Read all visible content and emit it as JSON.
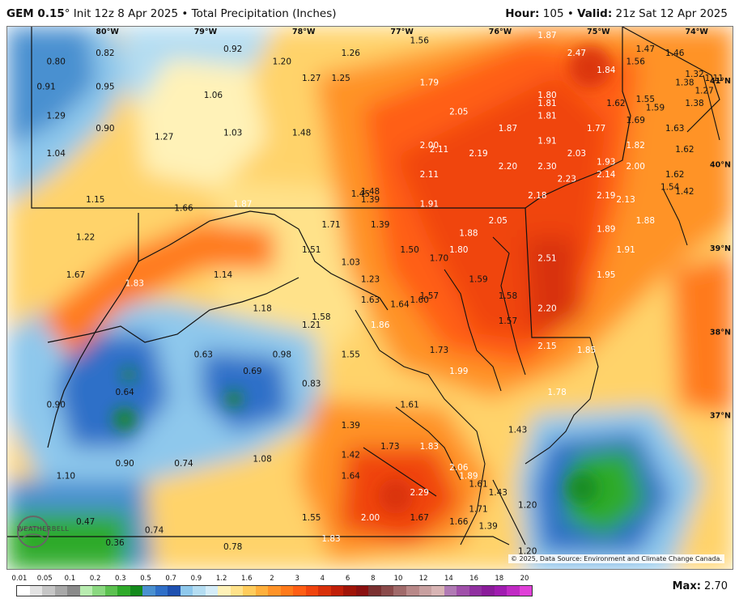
{
  "header": {
    "model": "GEM 0.15",
    "init": "Init 12z 8 Apr 2025",
    "product": "Total Precipitation (Inches)",
    "hour_label": "Hour:",
    "hour": "105",
    "valid_label": "Valid:",
    "valid": "21z Sat 12 Apr 2025"
  },
  "map": {
    "longitude_labels": [
      "80°W",
      "79°W",
      "78°W",
      "77°W",
      "76°W",
      "75°W",
      "74°W"
    ],
    "latitude_labels": [
      "41°N",
      "40°N",
      "39°N",
      "38°N",
      "37°N"
    ],
    "values": [
      {
        "v": "0.80",
        "lon": -80.6,
        "lat": 41.2
      },
      {
        "v": "0.82",
        "lon": -80.1,
        "lat": 41.3
      },
      {
        "v": "0.92",
        "lon": -78.8,
        "lat": 41.35
      },
      {
        "v": "1.20",
        "lon": -78.3,
        "lat": 41.2
      },
      {
        "v": "1.26",
        "lon": -77.6,
        "lat": 41.3
      },
      {
        "v": "1.56",
        "lon": -76.9,
        "lat": 41.45
      },
      {
        "v": "1.87",
        "lon": -75.6,
        "lat": 41.6
      },
      {
        "v": "2.47",
        "lon": -75.3,
        "lat": 41.3
      },
      {
        "v": "1.84",
        "lon": -75.0,
        "lat": 41.1
      },
      {
        "v": "1.47",
        "lon": -74.6,
        "lat": 41.35
      },
      {
        "v": "1.46",
        "lon": -74.3,
        "lat": 41.3
      },
      {
        "v": "1.56",
        "lon": -74.7,
        "lat": 41.2
      },
      {
        "v": "1.32",
        "lon": -74.1,
        "lat": 41.05
      },
      {
        "v": "1.11",
        "lon": -73.9,
        "lat": 41.0
      },
      {
        "v": "1.38",
        "lon": -74.2,
        "lat": 40.95
      },
      {
        "v": "1.27",
        "lon": -74.0,
        "lat": 40.85
      },
      {
        "v": "1.38",
        "lon": -74.1,
        "lat": 40.7
      },
      {
        "v": "0.91",
        "lon": -80.7,
        "lat": 40.9
      },
      {
        "v": "0.95",
        "lon": -80.1,
        "lat": 40.9
      },
      {
        "v": "1.27",
        "lon": -78.0,
        "lat": 41.0
      },
      {
        "v": "1.25",
        "lon": -77.7,
        "lat": 41.0
      },
      {
        "v": "1.79",
        "lon": -76.8,
        "lat": 40.95
      },
      {
        "v": "1.06",
        "lon": -79.0,
        "lat": 40.8
      },
      {
        "v": "1.80",
        "lon": -75.6,
        "lat": 40.8
      },
      {
        "v": "1.81",
        "lon": -75.6,
        "lat": 40.7
      },
      {
        "v": "1.62",
        "lon": -74.9,
        "lat": 40.7
      },
      {
        "v": "1.55",
        "lon": -74.6,
        "lat": 40.75
      },
      {
        "v": "1.59",
        "lon": -74.5,
        "lat": 40.65
      },
      {
        "v": "1.29",
        "lon": -80.6,
        "lat": 40.55
      },
      {
        "v": "0.90",
        "lon": -80.1,
        "lat": 40.4
      },
      {
        "v": "1.27",
        "lon": -79.5,
        "lat": 40.3
      },
      {
        "v": "1.03",
        "lon": -78.8,
        "lat": 40.35
      },
      {
        "v": "1.48",
        "lon": -78.1,
        "lat": 40.35
      },
      {
        "v": "2.05",
        "lon": -76.5,
        "lat": 40.6
      },
      {
        "v": "1.87",
        "lon": -76.0,
        "lat": 40.4
      },
      {
        "v": "1.81",
        "lon": -75.6,
        "lat": 40.55
      },
      {
        "v": "1.77",
        "lon": -75.1,
        "lat": 40.4
      },
      {
        "v": "1.69",
        "lon": -74.7,
        "lat": 40.5
      },
      {
        "v": "1.63",
        "lon": -74.3,
        "lat": 40.4
      },
      {
        "v": "1.04",
        "lon": -80.6,
        "lat": 40.1
      },
      {
        "v": "2.00",
        "lon": -76.8,
        "lat": 40.2
      },
      {
        "v": "2.11",
        "lon": -76.7,
        "lat": 40.15
      },
      {
        "v": "2.19",
        "lon": -76.3,
        "lat": 40.1
      },
      {
        "v": "1.91",
        "lon": -75.6,
        "lat": 40.25
      },
      {
        "v": "2.03",
        "lon": -75.3,
        "lat": 40.1
      },
      {
        "v": "1.82",
        "lon": -74.7,
        "lat": 40.2
      },
      {
        "v": "1.62",
        "lon": -74.2,
        "lat": 40.15
      },
      {
        "v": "1.93",
        "lon": -75.0,
        "lat": 40.0
      },
      {
        "v": "2.20",
        "lon": -76.0,
        "lat": 39.95
      },
      {
        "v": "2.30",
        "lon": -75.6,
        "lat": 39.95
      },
      {
        "v": "2.00",
        "lon": -74.7,
        "lat": 39.95
      },
      {
        "v": "2.23",
        "lon": -75.4,
        "lat": 39.8
      },
      {
        "v": "2.14",
        "lon": -75.0,
        "lat": 39.85
      },
      {
        "v": "1.62",
        "lon": -74.3,
        "lat": 39.85
      },
      {
        "v": "2.11",
        "lon": -76.8,
        "lat": 39.85
      },
      {
        "v": "1.54",
        "lon": -74.35,
        "lat": 39.7
      },
      {
        "v": "1.42",
        "lon": -74.2,
        "lat": 39.65
      },
      {
        "v": "1.15",
        "lon": -80.2,
        "lat": 39.55
      },
      {
        "v": "1.66",
        "lon": -79.3,
        "lat": 39.45
      },
      {
        "v": "1.87",
        "lon": -78.7,
        "lat": 39.5
      },
      {
        "v": "1.45",
        "lon": -77.5,
        "lat": 39.62
      },
      {
        "v": "1.48",
        "lon": -77.4,
        "lat": 39.65
      },
      {
        "v": "1.39",
        "lon": -77.4,
        "lat": 39.55
      },
      {
        "v": "1.91",
        "lon": -76.8,
        "lat": 39.5
      },
      {
        "v": "2.18",
        "lon": -75.7,
        "lat": 39.6
      },
      {
        "v": "2.19",
        "lon": -75.0,
        "lat": 39.6
      },
      {
        "v": "2.13",
        "lon": -74.8,
        "lat": 39.55
      },
      {
        "v": "2.05",
        "lon": -76.1,
        "lat": 39.3
      },
      {
        "v": "1.88",
        "lon": -76.4,
        "lat": 39.15
      },
      {
        "v": "1.89",
        "lon": -75.0,
        "lat": 39.2
      },
      {
        "v": "1.88",
        "lon": -74.6,
        "lat": 39.3
      },
      {
        "v": "1.91",
        "lon": -74.8,
        "lat": 38.95
      },
      {
        "v": "1.22",
        "lon": -80.3,
        "lat": 39.1
      },
      {
        "v": "1.71",
        "lon": -77.8,
        "lat": 39.25
      },
      {
        "v": "1.39",
        "lon": -77.3,
        "lat": 39.25
      },
      {
        "v": "1.51",
        "lon": -78.0,
        "lat": 38.95
      },
      {
        "v": "1.50",
        "lon": -77.0,
        "lat": 38.95
      },
      {
        "v": "1.80",
        "lon": -76.5,
        "lat": 38.95
      },
      {
        "v": "1.70",
        "lon": -76.7,
        "lat": 38.85
      },
      {
        "v": "1.03",
        "lon": -77.6,
        "lat": 38.8
      },
      {
        "v": "2.51",
        "lon": -75.6,
        "lat": 38.85
      },
      {
        "v": "1.67",
        "lon": -80.4,
        "lat": 38.65
      },
      {
        "v": "1.83",
        "lon": -79.8,
        "lat": 38.55
      },
      {
        "v": "1.14",
        "lon": -78.9,
        "lat": 38.65
      },
      {
        "v": "1.23",
        "lon": -77.4,
        "lat": 38.6
      },
      {
        "v": "1.95",
        "lon": -75.0,
        "lat": 38.65
      },
      {
        "v": "1.59",
        "lon": -76.3,
        "lat": 38.6
      },
      {
        "v": "1.57",
        "lon": -76.8,
        "lat": 38.4
      },
      {
        "v": "1.60",
        "lon": -76.9,
        "lat": 38.35
      },
      {
        "v": "1.64",
        "lon": -77.1,
        "lat": 38.3
      },
      {
        "v": "1.63",
        "lon": -77.4,
        "lat": 38.35
      },
      {
        "v": "1.58",
        "lon": -76.0,
        "lat": 38.4
      },
      {
        "v": "1.18",
        "lon": -78.5,
        "lat": 38.25
      },
      {
        "v": "1.58",
        "lon": -77.9,
        "lat": 38.15
      },
      {
        "v": "1.21",
        "lon": -78.0,
        "lat": 38.05
      },
      {
        "v": "1.86",
        "lon": -77.3,
        "lat": 38.05
      },
      {
        "v": "1.57",
        "lon": -76.0,
        "lat": 38.1
      },
      {
        "v": "2.20",
        "lon": -75.6,
        "lat": 38.25
      },
      {
        "v": "0.63",
        "lon": -79.1,
        "lat": 37.7
      },
      {
        "v": "0.98",
        "lon": -78.3,
        "lat": 37.7
      },
      {
        "v": "1.55",
        "lon": -77.6,
        "lat": 37.7
      },
      {
        "v": "1.73",
        "lon": -76.7,
        "lat": 37.75
      },
      {
        "v": "2.15",
        "lon": -75.6,
        "lat": 37.8
      },
      {
        "v": "1.85",
        "lon": -75.2,
        "lat": 37.75
      },
      {
        "v": "0.69",
        "lon": -78.6,
        "lat": 37.5
      },
      {
        "v": "1.99",
        "lon": -76.5,
        "lat": 37.5
      },
      {
        "v": "0.83",
        "lon": -78.0,
        "lat": 37.35
      },
      {
        "v": "0.64",
        "lon": -79.9,
        "lat": 37.25
      },
      {
        "v": "1.78",
        "lon": -75.5,
        "lat": 37.25
      },
      {
        "v": "0.90",
        "lon": -80.6,
        "lat": 37.1
      },
      {
        "v": "1.61",
        "lon": -77.0,
        "lat": 37.1
      },
      {
        "v": "1.39",
        "lon": -77.6,
        "lat": 36.85
      },
      {
        "v": "1.43",
        "lon": -75.9,
        "lat": 36.8
      },
      {
        "v": "1.73",
        "lon": -77.2,
        "lat": 36.6
      },
      {
        "v": "1.83",
        "lon": -76.8,
        "lat": 36.6
      },
      {
        "v": "1.42",
        "lon": -77.6,
        "lat": 36.5
      },
      {
        "v": "1.08",
        "lon": -78.5,
        "lat": 36.45
      },
      {
        "v": "0.90",
        "lon": -79.9,
        "lat": 36.4
      },
      {
        "v": "0.74",
        "lon": -79.3,
        "lat": 36.4
      },
      {
        "v": "2.06",
        "lon": -76.5,
        "lat": 36.35
      },
      {
        "v": "1.89",
        "lon": -76.4,
        "lat": 36.25
      },
      {
        "v": "1.10",
        "lon": -80.5,
        "lat": 36.25
      },
      {
        "v": "1.64",
        "lon": -77.6,
        "lat": 36.25
      },
      {
        "v": "1.61",
        "lon": -76.3,
        "lat": 36.15
      },
      {
        "v": "2.29",
        "lon": -76.9,
        "lat": 36.05
      },
      {
        "v": "1.43",
        "lon": -76.1,
        "lat": 36.05
      },
      {
        "v": "1.20",
        "lon": -75.8,
        "lat": 35.9
      },
      {
        "v": "1.71",
        "lon": -76.3,
        "lat": 35.85
      },
      {
        "v": "1.67",
        "lon": -76.9,
        "lat": 35.75
      },
      {
        "v": "1.66",
        "lon": -76.5,
        "lat": 35.7
      },
      {
        "v": "1.39",
        "lon": -76.2,
        "lat": 35.65
      },
      {
        "v": "1.55",
        "lon": -78.0,
        "lat": 35.75
      },
      {
        "v": "2.00",
        "lon": -77.4,
        "lat": 35.75
      },
      {
        "v": "0.47",
        "lon": -80.3,
        "lat": 35.7
      },
      {
        "v": "0.74",
        "lon": -79.6,
        "lat": 35.6
      },
      {
        "v": "0.36",
        "lon": -80.0,
        "lat": 35.45
      },
      {
        "v": "0.78",
        "lon": -78.8,
        "lat": 35.4
      },
      {
        "v": "1.83",
        "lon": -77.8,
        "lat": 35.5
      },
      {
        "v": "1.20",
        "lon": -75.8,
        "lat": 35.35
      }
    ],
    "credit": "© 2025, Data Source: Environment and Climate Change Canada.",
    "logo_text": "WEATHERBELL"
  },
  "legend": {
    "labels": [
      "0.01",
      "0.05",
      "0.1",
      "0.2",
      "0.3",
      "0.5",
      "0.7",
      "0.9",
      "1.2",
      "1.6",
      "2",
      "3",
      "4",
      "6",
      "8",
      "10",
      "12",
      "14",
      "16",
      "18",
      "20"
    ],
    "colors": [
      "#ffffff",
      "#e3e3e3",
      "#c6c6c6",
      "#a8a8a8",
      "#8a8a8a",
      "#b8ecb0",
      "#8ad880",
      "#5cc150",
      "#2faa2a",
      "#148a1c",
      "#4a90d0",
      "#2f6fc8",
      "#1e50b0",
      "#8ec8ec",
      "#b4ddf2",
      "#d4ecf8",
      "#fff2b8",
      "#ffe28a",
      "#ffcc5c",
      "#ffb03c",
      "#ff9328",
      "#ff7a1a",
      "#ff5e14",
      "#f0440e",
      "#d8300a",
      "#c01e08",
      "#a01408",
      "#8a1010",
      "#7a3030",
      "#8a4a4a",
      "#a06a6a",
      "#b88888",
      "#c8a0a0",
      "#d8b4b4",
      "#b07ab4",
      "#a050aa",
      "#9030a0",
      "#8a1c9a",
      "#a01cb0",
      "#c02ac4",
      "#e040d8"
    ],
    "max_label": "Max:",
    "max_value": "2.70"
  }
}
